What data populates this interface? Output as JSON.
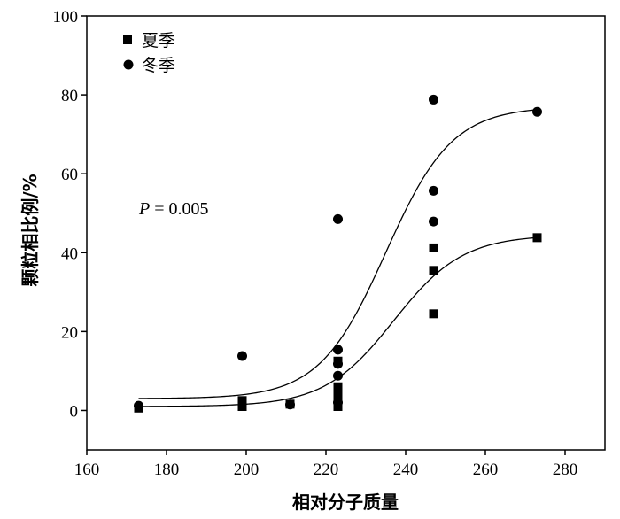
{
  "chart_data": {
    "type": "scatter",
    "title": "",
    "xlabel": "相对分子质量",
    "ylabel": "颗粒相比例/%",
    "xlim": [
      160,
      290
    ],
    "ylim": [
      -10,
      100
    ],
    "xticks": [
      160,
      180,
      200,
      220,
      240,
      260,
      280
    ],
    "yticks": [
      0,
      20,
      40,
      60,
      80,
      100
    ],
    "legend_position": "top-left",
    "annotation": {
      "italic": "P",
      "rest": " = 0.005"
    },
    "series": [
      {
        "name": "夏季",
        "marker": "square",
        "points": [
          [
            173,
            0.6
          ],
          [
            199,
            1.0
          ],
          [
            199,
            1.8
          ],
          [
            199,
            2.5
          ],
          [
            211,
            1.6
          ],
          [
            223,
            1.0
          ],
          [
            223,
            3.0
          ],
          [
            223,
            4.5
          ],
          [
            223,
            6.0
          ],
          [
            223,
            12.5
          ],
          [
            247,
            41.2
          ],
          [
            247,
            35.5
          ],
          [
            247,
            24.5
          ],
          [
            273,
            43.8
          ]
        ],
        "fit": {
          "type": "logistic",
          "bottom": 1.0,
          "top": 44.5,
          "x0": 237,
          "k": 0.115
        }
      },
      {
        "name": "冬季",
        "marker": "circle",
        "points": [
          [
            173,
            1.2
          ],
          [
            199,
            13.8
          ],
          [
            211,
            1.5
          ],
          [
            223,
            48.5
          ],
          [
            223,
            15.4
          ],
          [
            223,
            11.8
          ],
          [
            223,
            8.8
          ],
          [
            223,
            2.0
          ],
          [
            247,
            78.8
          ],
          [
            247,
            55.7
          ],
          [
            247,
            47.9
          ],
          [
            273,
            75.7
          ]
        ],
        "fit": {
          "type": "logistic",
          "bottom": 3.0,
          "top": 77.0,
          "x0": 235,
          "k": 0.12
        }
      }
    ]
  }
}
